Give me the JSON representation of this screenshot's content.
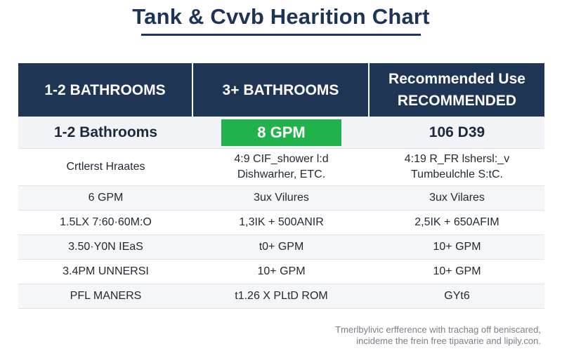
{
  "title": "Tank & Cvvb Hearition Chart",
  "table": {
    "header": {
      "col1": "1-2 BATHROOMS",
      "col2": "3+ BATHROOMS",
      "col3_line1": "Recommended Use",
      "col3_line2": "RECOMMENDED"
    },
    "subheader": {
      "col1": "1-2 Bathrooms",
      "col2": "8 GPM",
      "col3": "106 D39"
    },
    "rows": [
      {
        "col1": "Crtlerst Hraates",
        "col2_line1": "4:9 CIF_shower l:d",
        "col2_line2": "Dishwarher, ETC.",
        "col3_line1": "4:19 R_FR lshersl:_v",
        "col3_line2": "Tumbeulchle S:tC."
      },
      {
        "col1": "6 GPM",
        "col2": "3ux Vilures",
        "col3": "3ux Vilares"
      },
      {
        "col1": "1.5LX 7:60·60M:O",
        "col2": "1,3IK + 500ANIR",
        "col3": "2,5IK + 650AFIM"
      },
      {
        "col1": "3.50·Y0N IEaS",
        "col2": "t0+ GPM",
        "col3": "10+ GPM"
      },
      {
        "col1": "3.4PM UNNERSI",
        "col2": "10+ GPM",
        "col3": "10+ GPM"
      },
      {
        "col1": "PFL MANERS",
        "col2": "t1.26 X PLtD ROM",
        "col3": "GYt6"
      }
    ]
  },
  "footnote": {
    "line1": "Tmerlbylivic erfference with trachag off beniscared,",
    "line2": "incideme the frein free tipavarie and lipily.con."
  },
  "colors": {
    "header_bg": "#1f3556",
    "title_color": "#1d3358",
    "badge_green": "#22b24c",
    "subheader_bg": "#f1f3f6"
  }
}
